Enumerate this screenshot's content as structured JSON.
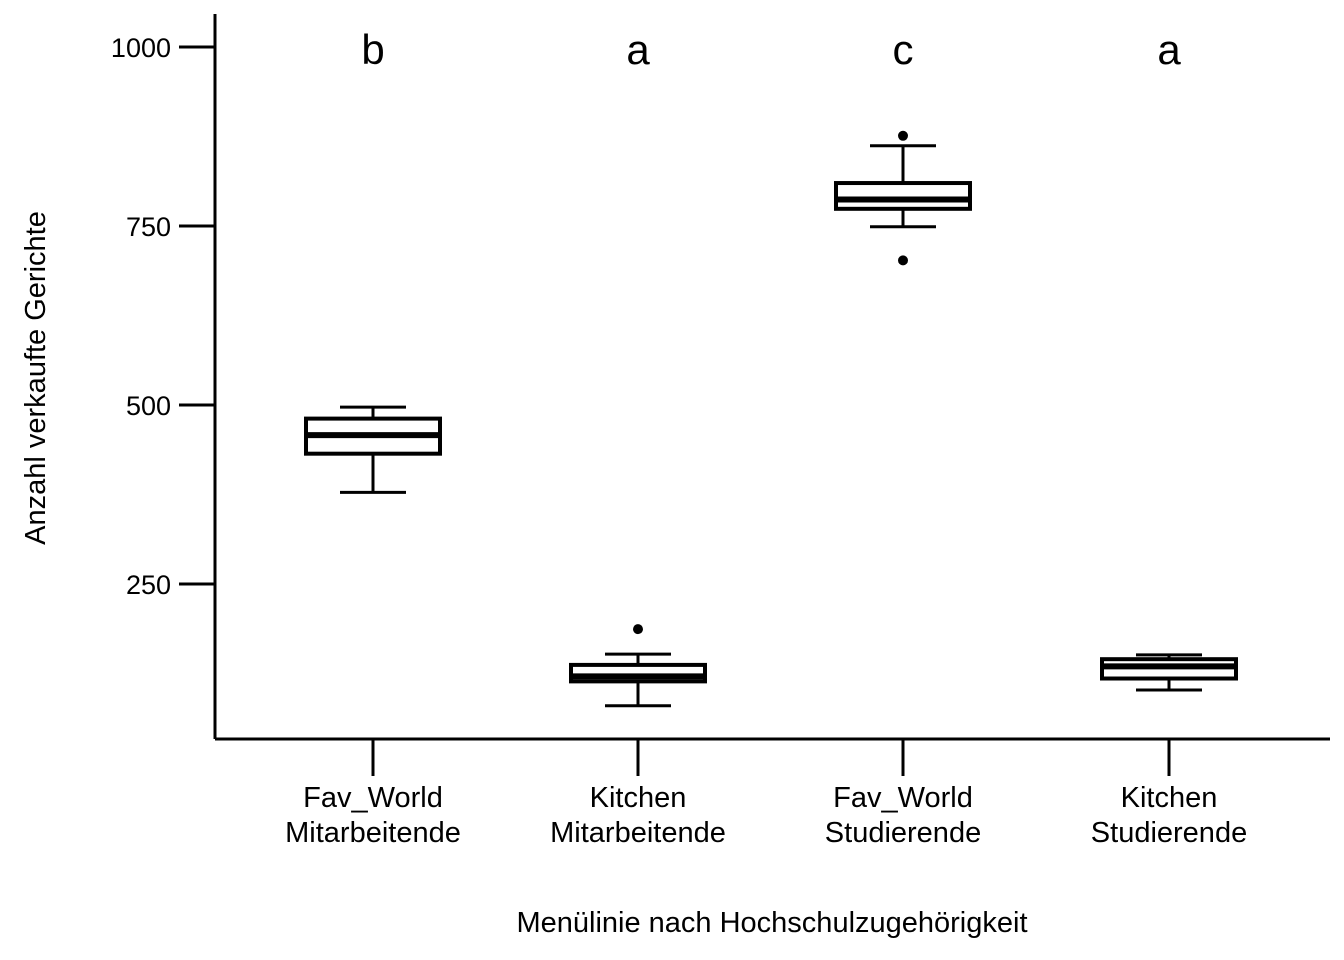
{
  "chart_data": {
    "type": "box",
    "title": "",
    "xlabel": "Menülinie nach Hochschulzugehörigkeit",
    "ylabel": "Anzahl verkaufte Gerichte",
    "ylim": [
      50,
      1045
    ],
    "yticks": [
      250,
      500,
      750,
      1000
    ],
    "grid": false,
    "legend": "none",
    "categories": [
      {
        "line1": "Fav_World",
        "line2": "Mitarbeitende",
        "letter": "b",
        "whisker_low": 378,
        "q1": 432,
        "median": 458,
        "q3": 481,
        "whisker_high": 497,
        "outliers": []
      },
      {
        "line1": "Kitchen",
        "line2": "Mitarbeitende",
        "letter": "a",
        "whisker_low": 80,
        "q1": 114,
        "median": 121,
        "q3": 137,
        "whisker_high": 152,
        "outliers": [
          187
        ]
      },
      {
        "line1": "Fav_World",
        "line2": "Studierende",
        "letter": "c",
        "whisker_low": 749,
        "q1": 774,
        "median": 787,
        "q3": 810,
        "whisker_high": 862,
        "outliers": [
          876,
          702
        ]
      },
      {
        "line1": "Kitchen",
        "line2": "Studierende",
        "letter": "a",
        "whisker_low": 102,
        "q1": 118,
        "median": 135,
        "q3": 145,
        "whisker_high": 151,
        "outliers": []
      }
    ]
  }
}
